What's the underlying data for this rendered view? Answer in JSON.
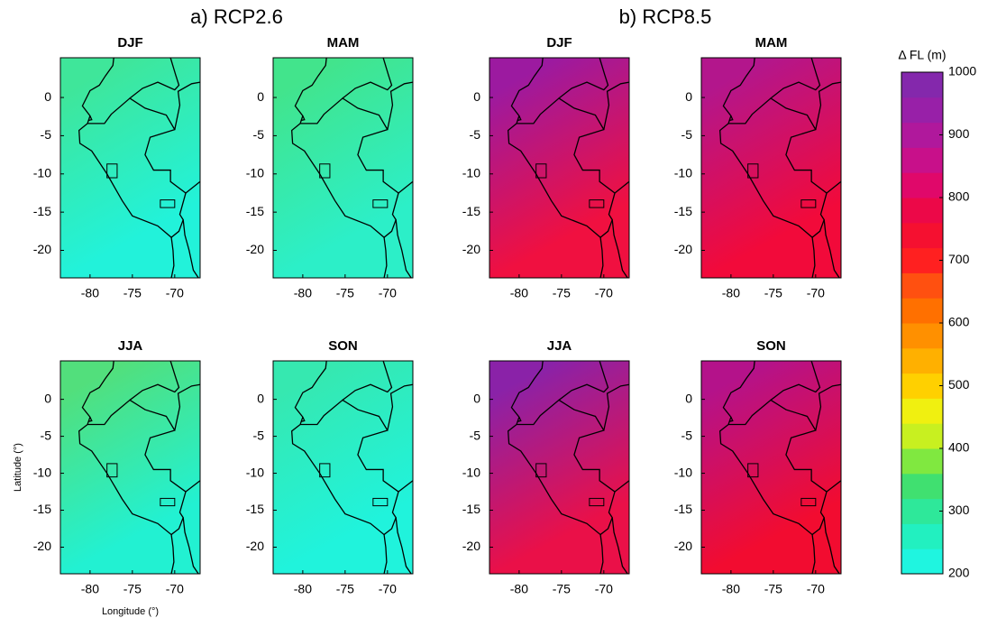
{
  "panel_groups": [
    {
      "title": "a) RCP2.6",
      "panels": [
        {
          "title": "DJF",
          "fill_top": "#3fe69a",
          "fill_bottom": "#22f2da"
        },
        {
          "title": "MAM",
          "fill_top": "#42e48c",
          "fill_bottom": "#2cefc8"
        },
        {
          "title": "JJA",
          "fill_top": "#52df7c",
          "fill_bottom": "#22f1d2"
        },
        {
          "title": "SON",
          "fill_top": "#36e8b0",
          "fill_bottom": "#20f3dc"
        }
      ]
    },
    {
      "title": "b) RCP8.5",
      "panels": [
        {
          "title": "DJF",
          "fill_top": "#9c1aa0",
          "fill_bottom": "#f01040"
        },
        {
          "title": "MAM",
          "fill_top": "#b3168c",
          "fill_bottom": "#f20a3a"
        },
        {
          "title": "JJA",
          "fill_top": "#8a22a8",
          "fill_bottom": "#ea1048"
        },
        {
          "title": "SON",
          "fill_top": "#b4128a",
          "fill_bottom": "#f20c30"
        }
      ]
    }
  ],
  "map_axes": {
    "xlim": [
      -83.5,
      -67
    ],
    "ylim": [
      -23.6,
      5.2
    ],
    "xticks": [
      -80,
      -75,
      -70
    ],
    "yticks": [
      0,
      -5,
      -10,
      -15,
      -20
    ],
    "xlabel": "Longitude (°)",
    "ylabel": "Latitude (°)"
  },
  "colorbar": {
    "label": "Δ FL (m)",
    "lim": [
      200,
      1000
    ],
    "ticks": [
      200,
      300,
      400,
      500,
      600,
      700,
      800,
      900,
      1000
    ],
    "colors": [
      "#1ff5e0",
      "#22f0c0",
      "#2ee89a",
      "#40e070",
      "#80e840",
      "#c8f020",
      "#f0f010",
      "#ffd000",
      "#ffb000",
      "#ff9000",
      "#ff7000",
      "#ff5010",
      "#ff2020",
      "#f51030",
      "#ec0848",
      "#e0086a",
      "#c8108a",
      "#b0189c",
      "#9820a8",
      "#8428ac"
    ]
  }
}
